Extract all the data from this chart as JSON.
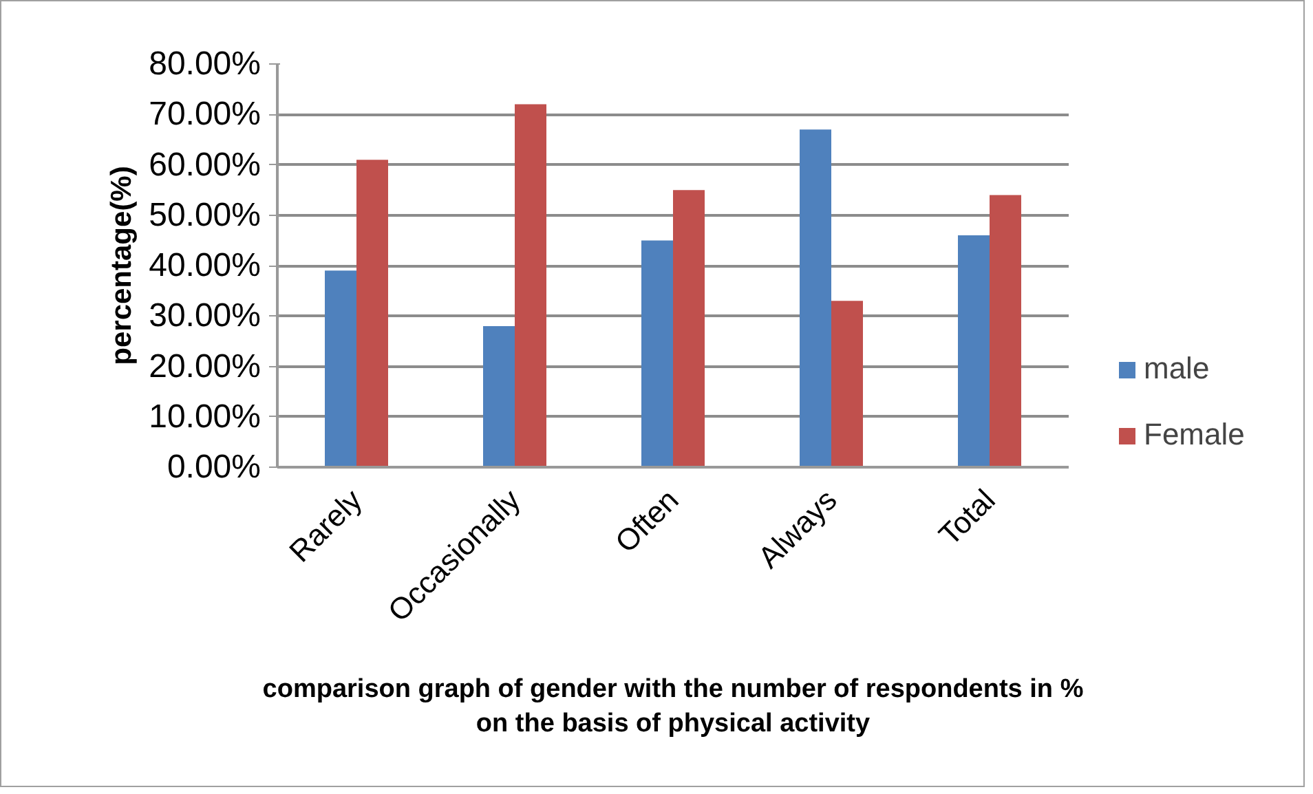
{
  "chart_data": {
    "type": "bar",
    "xlabel": "comparison graph of gender with the number of respondents in %\non the basis of physical activity",
    "ylabel": "percentage(%)",
    "categories": [
      "Rarely",
      "Occasionally",
      "Often",
      "Always",
      "Total"
    ],
    "series": [
      {
        "name": "male",
        "color": "#4f81bd",
        "values": [
          39,
          28,
          45,
          67,
          46
        ]
      },
      {
        "name": "Female",
        "color": "#c0504d",
        "values": [
          61,
          72,
          55,
          33,
          54
        ]
      }
    ],
    "ylim": [
      0,
      80
    ],
    "yticks": [
      {
        "value": 0,
        "label": "0.00%"
      },
      {
        "value": 10,
        "label": "10.00%"
      },
      {
        "value": 20,
        "label": "20.00%"
      },
      {
        "value": 30,
        "label": "30.00%"
      },
      {
        "value": 40,
        "label": "40.00%"
      },
      {
        "value": 50,
        "label": "50.00%"
      },
      {
        "value": 60,
        "label": "60.00%"
      },
      {
        "value": 70,
        "label": "70.00%"
      },
      {
        "value": 80,
        "label": "80.00%"
      }
    ],
    "grid": "y",
    "legend": "right"
  }
}
